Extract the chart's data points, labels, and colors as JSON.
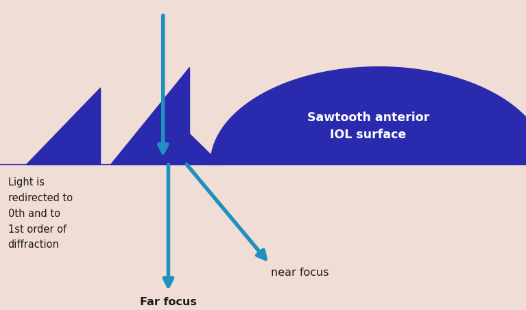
{
  "bg_color": "#f0ddd5",
  "dark_blue": "#2a2aae",
  "cyan_blue": "#2090c0",
  "text_color_dark": "#1a1a1a",
  "text_color_white": "#ffffff",
  "sawtooth_label": "Sawtooth anterior\nIOL surface",
  "left_label": "Light is\nredirected to\n0th and to\n1st order of\ndiffraction",
  "far_focus_label": "Far focus",
  "near_focus_label": "near focus",
  "figsize": [
    7.67,
    4.53
  ],
  "dpi": 100
}
